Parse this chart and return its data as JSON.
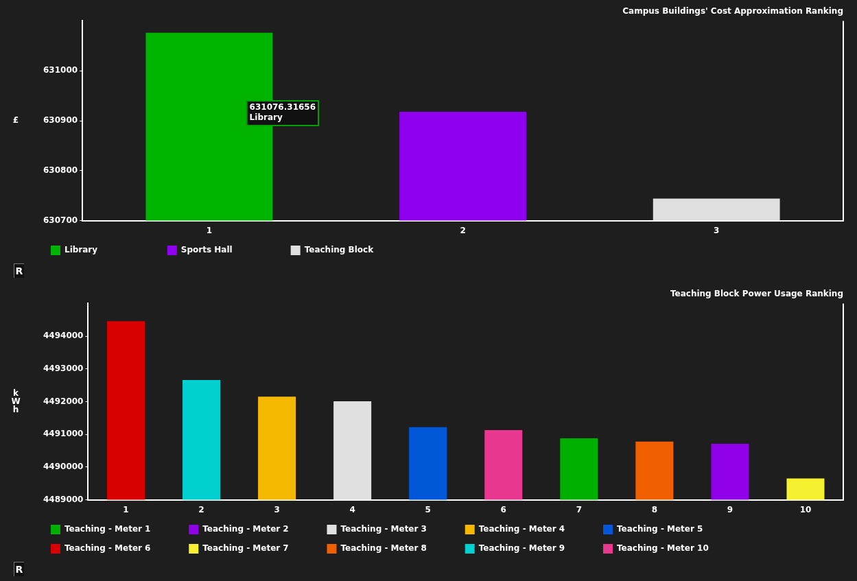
{
  "chart_data": [
    {
      "type": "bar",
      "title": "Campus Buildings' Cost Approximation Ranking",
      "ylabel": "£",
      "categories": [
        "1",
        "2",
        "3"
      ],
      "series": [
        {
          "name": "Library",
          "color": "#00b400",
          "values": [
            631076.31656,
            null,
            null
          ]
        },
        {
          "name": "Sports Hall",
          "color": "#9000f0",
          "values": [
            null,
            630918,
            null
          ]
        },
        {
          "name": "Teaching Block",
          "color": "#e0e0e0",
          "values": [
            null,
            null,
            630744
          ]
        }
      ],
      "ylim": [
        630700,
        631100
      ],
      "yticks": [
        630700,
        630800,
        630900,
        631000
      ],
      "grid": false,
      "legend": "bottom",
      "annotations": [
        "631076.31656\nLibrary",
        "R"
      ]
    },
    {
      "type": "bar",
      "title": "Teaching Block Power Usage Ranking",
      "ylabel": "kWh",
      "categories": [
        "1",
        "2",
        "3",
        "4",
        "5",
        "6",
        "7",
        "8",
        "9",
        "10"
      ],
      "series": [
        {
          "name": "Teaching - Meter 1",
          "color": "#00b000",
          "values": [
            null,
            null,
            null,
            null,
            null,
            null,
            4490880,
            null,
            null,
            null
          ]
        },
        {
          "name": "Teaching - Meter 2",
          "color": "#9000e8",
          "values": [
            null,
            null,
            null,
            null,
            null,
            null,
            null,
            null,
            4490710,
            null
          ]
        },
        {
          "name": "Teaching - Meter 3",
          "color": "#e0e0e0",
          "values": [
            null,
            null,
            null,
            4492010,
            null,
            null,
            null,
            null,
            null,
            null
          ]
        },
        {
          "name": "Teaching - Meter 4",
          "color": "#f5b800",
          "values": [
            null,
            null,
            4492150,
            null,
            null,
            null,
            null,
            null,
            null,
            null
          ]
        },
        {
          "name": "Teaching - Meter 5",
          "color": "#0058d8",
          "values": [
            null,
            null,
            null,
            null,
            4491220,
            null,
            null,
            null,
            null,
            null
          ]
        },
        {
          "name": "Teaching - Meter 6",
          "color": "#d80000",
          "values": [
            4494460,
            null,
            null,
            null,
            null,
            null,
            null,
            null,
            null,
            null
          ]
        },
        {
          "name": "Teaching - Meter 7",
          "color": "#f5f030",
          "values": [
            null,
            null,
            null,
            null,
            null,
            null,
            null,
            null,
            null,
            4489650
          ]
        },
        {
          "name": "Teaching - Meter 8",
          "color": "#f06000",
          "values": [
            null,
            null,
            null,
            null,
            null,
            null,
            null,
            4490780,
            null,
            null
          ]
        },
        {
          "name": "Teaching - Meter 9",
          "color": "#00d0d0",
          "values": [
            null,
            4492660,
            null,
            null,
            null,
            null,
            null,
            null,
            null,
            null
          ]
        },
        {
          "name": "Teaching - Meter 10",
          "color": "#e83890",
          "values": [
            null,
            null,
            null,
            null,
            null,
            4491130,
            null,
            null,
            null,
            null
          ]
        }
      ],
      "ylim": [
        4489000,
        4495000
      ],
      "yticks": [
        4489000,
        4490000,
        4491000,
        4492000,
        4493000,
        4494000
      ],
      "grid": false,
      "legend": "bottom",
      "annotations": [
        "R"
      ]
    }
  ]
}
